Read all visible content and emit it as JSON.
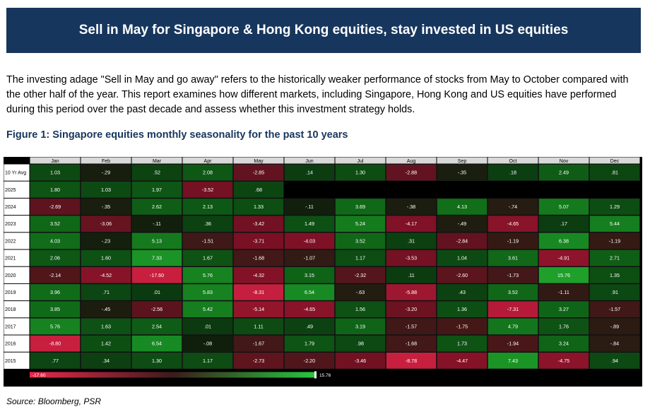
{
  "header": {
    "title": "Sell in May for Singapore & Hong Kong equities, stay invested in US equities"
  },
  "intro": {
    "text": "The investing adage \"Sell in May and go away\" refers to the historically weaker performance of stocks from May to October compared with the other half of the year. This report examines how different markets, including Singapore, Hong Kong and US equities have performed during this period over the past decade and assess whether this investment strategy holds."
  },
  "figure": {
    "title": "Figure 1: Singapore equities monthly seasonality for the past 10 years"
  },
  "source": {
    "text": "Source: Bloomberg, PSR"
  },
  "chart_data": {
    "type": "heatmap",
    "columns": [
      "Jan",
      "Feb",
      "Mar",
      "Apr",
      "May",
      "Jun",
      "Jul",
      "Aug",
      "Sep",
      "Oct",
      "Nov",
      "Dec"
    ],
    "rows": [
      {
        "label": "10 Yr Avg",
        "values": [
          "1.03",
          "-.29",
          ".52",
          "2.08",
          "-2.85",
          ".14",
          "1.30",
          "-2.88",
          "-.35",
          ".18",
          "2.49",
          ".81"
        ]
      },
      {
        "label": "2025",
        "values": [
          "1.80",
          "1.03",
          "1.97",
          "-3.52",
          ".68",
          null,
          null,
          null,
          null,
          null,
          null,
          null
        ]
      },
      {
        "label": "2024",
        "values": [
          "-2.69",
          "-.35",
          "2.62",
          "2.13",
          "1.33",
          "-.11",
          "3.69",
          "-.38",
          "4.13",
          "-.74",
          "5.07",
          "1.29"
        ]
      },
      {
        "label": "2023",
        "values": [
          "3.52",
          "-3.06",
          "-.11",
          ".36",
          "-3.42",
          "1.49",
          "5.24",
          "-4.17",
          "-.49",
          "-4.65",
          ".17",
          "5.44"
        ]
      },
      {
        "label": "2022",
        "values": [
          "4.03",
          "-.23",
          "5.13",
          "-1.51",
          "-3.71",
          "-4.03",
          "3.52",
          ".31",
          "-2.84",
          "-1.19",
          "6.38",
          "-1.19"
        ]
      },
      {
        "label": "2021",
        "values": [
          "2.06",
          "1.60",
          "7.33",
          "1.67",
          "-1.68",
          "-1.07",
          "1.17",
          "-3.53",
          "1.04",
          "3.61",
          "-4.91",
          "2.71"
        ]
      },
      {
        "label": "2020",
        "values": [
          "-2.14",
          "-4.52",
          "-17.60",
          "5.76",
          "-4.32",
          "3.15",
          "-2.32",
          ".11",
          "-2.60",
          "-1.73",
          "15.76",
          "1.35"
        ]
      },
      {
        "label": "2019",
        "values": [
          "3.96",
          ".71",
          ".01",
          "5.83",
          "-8.31",
          "6.54",
          "-.63",
          "-5.88",
          ".43",
          "3.52",
          "-1.11",
          ".91"
        ]
      },
      {
        "label": "2018",
        "values": [
          "3.85",
          "-.45",
          "-2.56",
          "5.42",
          "-5.14",
          "-4.65",
          "1.56",
          "-3.20",
          "1.36",
          "-7.31",
          "3.27",
          "-1.57"
        ]
      },
      {
        "label": "2017",
        "values": [
          "5.76",
          "1.63",
          "2.54",
          ".01",
          "1.11",
          ".49",
          "3.19",
          "-1.57",
          "-1.75",
          "4.79",
          "1.76",
          "-.89"
        ]
      },
      {
        "label": "2016",
        "values": [
          "-8.80",
          "1.42",
          "6.54",
          "-.08",
          "-1.67",
          "1.79",
          ".98",
          "-1.68",
          "1.73",
          "-1.94",
          "3.24",
          "-.84"
        ]
      },
      {
        "label": "2015",
        "values": [
          ".77",
          ".34",
          "1.30",
          "1.17",
          "-2.73",
          "-2.20",
          "-3.46",
          "-8.78",
          "-4.47",
          "7.43",
          "-4.75",
          ".94"
        ]
      }
    ],
    "scale": {
      "min": "-17.60",
      "max": "15.76",
      "low_color": "#e8294b",
      "high_color": "#27c93f"
    }
  }
}
